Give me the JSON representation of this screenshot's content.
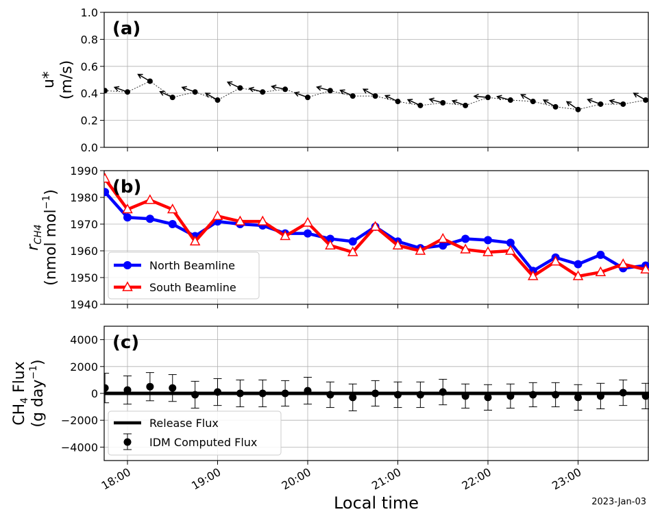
{
  "date_label": "2023-Jan-03",
  "xlabel": "Local time",
  "x_ticks": [
    "18:00",
    "19:00",
    "20:00",
    "21:00",
    "22:00",
    "23:00"
  ],
  "chart_data": [
    {
      "type": "line",
      "panel": "(a)",
      "ylabel_lines": [
        "u*",
        "(m/s)"
      ],
      "ylim": [
        0.0,
        1.0
      ],
      "yticks": [
        "0.0",
        "0.2",
        "0.4",
        "0.6",
        "0.8",
        "1.0"
      ],
      "grid": true,
      "x_hours": [
        17.75,
        18.0,
        18.25,
        18.5,
        18.75,
        19.0,
        19.25,
        19.5,
        19.75,
        20.0,
        20.25,
        20.5,
        20.75,
        21.0,
        21.25,
        21.5,
        21.75,
        22.0,
        22.25,
        22.5,
        22.75,
        23.0,
        23.25,
        23.5,
        23.75
      ],
      "values": [
        0.42,
        0.41,
        0.49,
        0.37,
        0.41,
        0.35,
        0.44,
        0.41,
        0.43,
        0.37,
        0.42,
        0.38,
        0.38,
        0.34,
        0.31,
        0.33,
        0.31,
        0.37,
        0.35,
        0.34,
        0.3,
        0.28,
        0.32,
        0.32,
        0.35
      ],
      "wind_arrow_angle_deg": [
        165,
        160,
        150,
        155,
        160,
        150,
        155,
        165,
        168,
        160,
        165,
        155,
        150,
        155,
        155,
        165,
        160,
        175,
        165,
        150,
        150,
        145,
        160,
        165,
        150
      ]
    },
    {
      "type": "line",
      "panel": "(b)",
      "ylabel_main": "r",
      "ylabel_sub": "CH4",
      "ylabel_units": "(nmol mol",
      "ylabel_units_sup": "−1",
      "ylabel_units_end": ")",
      "ylim": [
        1940,
        1990
      ],
      "yticks": [
        "1940",
        "1950",
        "1960",
        "1970",
        "1980",
        "1990"
      ],
      "grid": true,
      "legend_position": "lower-left",
      "x_hours": [
        17.75,
        18.0,
        18.25,
        18.5,
        18.75,
        19.0,
        19.25,
        19.5,
        19.75,
        20.0,
        20.25,
        20.5,
        20.75,
        21.0,
        21.25,
        21.5,
        21.75,
        22.0,
        22.25,
        22.5,
        22.75,
        23.0,
        23.25,
        23.5,
        23.75
      ],
      "series": [
        {
          "name": "North Beamline",
          "color": "#0000ff",
          "marker": "circle",
          "values": [
            1982,
            1972.5,
            1972,
            1970,
            1965.5,
            1971,
            1970,
            1969.5,
            1966.5,
            1966.5,
            1964.5,
            1963.5,
            1969,
            1963.5,
            1961,
            1962,
            1964.5,
            1964,
            1963,
            1952.5,
            1957.5,
            1955,
            1958.5,
            1953.5,
            1954.5
          ]
        },
        {
          "name": "South Beamline",
          "color": "#ff0000",
          "marker": "triangle",
          "values": [
            1987,
            1975.5,
            1979,
            1975.5,
            1963.5,
            1973,
            1971,
            1971,
            1965.5,
            1970.5,
            1962,
            1959.5,
            1969,
            1962,
            1960,
            1964.5,
            1960.5,
            1959.5,
            1960,
            1950.5,
            1956,
            1950.5,
            1952,
            1955,
            1953
          ]
        }
      ]
    },
    {
      "type": "scatter",
      "panel": "(c)",
      "ylabel_line1": "CH",
      "ylabel_line1_sub": "4",
      "ylabel_line1_end": " Flux",
      "ylabel_line2": "(g day",
      "ylabel_line2_sup": "−1",
      "ylabel_line2_end": ")",
      "ylim": [
        -5000,
        5000
      ],
      "yticks": [
        "−4000",
        "−2000",
        "0",
        "2000",
        "4000"
      ],
      "ytick_values": [
        -4000,
        -2000,
        0,
        2000,
        4000
      ],
      "grid": true,
      "legend_position": "lower-left",
      "release_flux": {
        "name": "Release Flux",
        "value": 0,
        "color": "#000000"
      },
      "idm_flux": {
        "name": "IDM Computed Flux",
        "color": "#000000",
        "x_hours": [
          17.75,
          18.0,
          18.25,
          18.5,
          18.75,
          19.0,
          19.25,
          19.5,
          19.75,
          20.0,
          20.25,
          20.5,
          20.75,
          21.0,
          21.25,
          21.5,
          21.75,
          22.0,
          22.25,
          22.5,
          22.75,
          23.0,
          23.25,
          23.5,
          23.75
        ],
        "values": [
          400,
          250,
          500,
          400,
          -100,
          100,
          0,
          0,
          0,
          200,
          -100,
          -300,
          0,
          -100,
          -100,
          100,
          -200,
          -300,
          -200,
          -100,
          -100,
          -300,
          -200,
          50,
          -200
        ],
        "errors": [
          1100,
          1050,
          1050,
          1000,
          1000,
          1000,
          1000,
          1000,
          950,
          1000,
          950,
          1000,
          950,
          950,
          950,
          950,
          900,
          950,
          900,
          900,
          900,
          950,
          950,
          950,
          950
        ]
      }
    }
  ]
}
